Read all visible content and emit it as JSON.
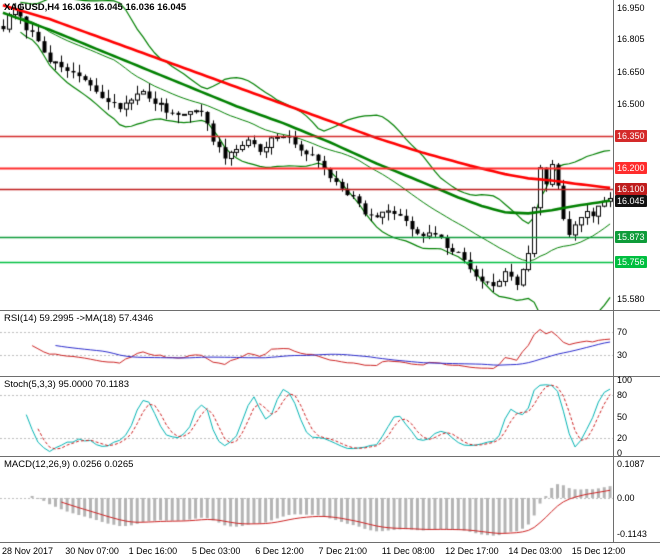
{
  "chart_data": [
    {
      "type": "candlestick",
      "title": "XAGUSD,H4 16.036 16.045 16.036 16.045",
      "symbol": "XAGUSD",
      "timeframe": "H4",
      "bars": 105,
      "ylim": [
        15.53,
        16.99
      ],
      "noise_seed": 7,
      "noise_amp": 0.028,
      "wick_amp": 0.04,
      "close_anchors": [
        [
          0,
          16.86
        ],
        [
          1,
          16.91
        ],
        [
          2,
          16.945
        ],
        [
          3,
          16.9
        ],
        [
          4,
          16.86
        ],
        [
          6,
          16.8
        ],
        [
          8,
          16.71
        ],
        [
          10,
          16.66
        ],
        [
          12,
          16.65
        ],
        [
          14,
          16.61
        ],
        [
          16,
          16.55
        ],
        [
          18,
          16.51
        ],
        [
          20,
          16.48
        ],
        [
          22,
          16.53
        ],
        [
          24,
          16.55
        ],
        [
          26,
          16.51
        ],
        [
          28,
          16.47
        ],
        [
          30,
          16.45
        ],
        [
          32,
          16.475
        ],
        [
          34,
          16.455
        ],
        [
          35,
          16.42
        ],
        [
          36,
          16.32
        ],
        [
          38,
          16.25
        ],
        [
          40,
          16.29
        ],
        [
          42,
          16.33
        ],
        [
          44,
          16.28
        ],
        [
          46,
          16.33
        ],
        [
          48,
          16.35
        ],
        [
          50,
          16.31
        ],
        [
          52,
          16.27
        ],
        [
          54,
          16.23
        ],
        [
          56,
          16.16
        ],
        [
          58,
          16.11
        ],
        [
          60,
          16.06
        ],
        [
          62,
          15.99
        ],
        [
          64,
          15.96
        ],
        [
          66,
          16.0
        ],
        [
          68,
          15.97
        ],
        [
          70,
          15.91
        ],
        [
          72,
          15.87
        ],
        [
          74,
          15.89
        ],
        [
          76,
          15.83
        ],
        [
          78,
          15.79
        ],
        [
          80,
          15.73
        ],
        [
          82,
          15.67
        ],
        [
          84,
          15.635
        ],
        [
          86,
          15.71
        ],
        [
          88,
          15.65
        ],
        [
          90,
          15.8
        ],
        [
          91,
          16.02
        ],
        [
          92,
          16.19
        ],
        [
          93,
          16.13
        ],
        [
          94,
          16.21
        ],
        [
          95,
          16.11
        ],
        [
          96,
          15.96
        ],
        [
          97,
          15.89
        ],
        [
          98,
          15.93
        ],
        [
          99,
          15.97
        ],
        [
          100,
          16.005
        ],
        [
          101,
          15.975
        ],
        [
          102,
          16.02
        ],
        [
          103,
          16.035
        ],
        [
          104,
          16.045
        ]
      ],
      "ma_red_anchors": [
        [
          0,
          16.965
        ],
        [
          8,
          16.9
        ],
        [
          16,
          16.82
        ],
        [
          24,
          16.74
        ],
        [
          32,
          16.66
        ],
        [
          40,
          16.58
        ],
        [
          48,
          16.5
        ],
        [
          56,
          16.42
        ],
        [
          64,
          16.34
        ],
        [
          72,
          16.27
        ],
        [
          80,
          16.21
        ],
        [
          86,
          16.17
        ],
        [
          90,
          16.15
        ],
        [
          94,
          16.14
        ],
        [
          98,
          16.125
        ],
        [
          104,
          16.105
        ]
      ],
      "ma_green_anchors": [
        [
          0,
          16.93
        ],
        [
          8,
          16.85
        ],
        [
          16,
          16.76
        ],
        [
          24,
          16.67
        ],
        [
          32,
          16.58
        ],
        [
          40,
          16.49
        ],
        [
          48,
          16.41
        ],
        [
          56,
          16.32
        ],
        [
          64,
          16.22
        ],
        [
          72,
          16.13
        ],
        [
          78,
          16.06
        ],
        [
          82,
          16.02
        ],
        [
          86,
          15.99
        ],
        [
          90,
          15.985
        ],
        [
          94,
          16.0
        ],
        [
          98,
          16.02
        ],
        [
          104,
          16.045
        ]
      ],
      "ma_red_color": "#ff0000",
      "ma_green_color": "#008000",
      "bollinger": {
        "period": 20,
        "deviation": 2,
        "color": "#008000"
      },
      "y_ticks": [
        {
          "label": "16.950",
          "value": 16.95
        },
        {
          "label": "16.805",
          "value": 16.805
        },
        {
          "label": "16.650",
          "value": 16.65
        },
        {
          "label": "16.500",
          "value": 16.5
        },
        {
          "label": "15.580",
          "value": 15.58
        }
      ],
      "levels": [
        {
          "label": "16.350",
          "value": 16.35,
          "color": "#d42a2a",
          "lw": 1.5
        },
        {
          "label": "16.200",
          "value": 16.2,
          "color": "#ff2d2d",
          "lw": 2
        },
        {
          "label": "16.100",
          "value": 16.1,
          "color": "#bf1d1d",
          "lw": 1.5
        },
        {
          "label": "16.045",
          "value": 16.045,
          "color": "#111111",
          "lw": 0
        },
        {
          "label": "15.873",
          "value": 15.873,
          "color": "#0e9c3a",
          "lw": 1.5
        },
        {
          "label": "15.756",
          "value": 15.756,
          "color": "#00bf40",
          "lw": 1.5
        }
      ],
      "x_labels": [
        "28 Nov 2017",
        "30 Nov 07:00",
        "1 Dec 16:00",
        "5 Dec 03:00",
        "6 Dec 12:00",
        "7 Dec 21:00",
        "11 Dec 08:00",
        "12 Dec 17:00",
        "14 Dec 03:00",
        "15 Dec 12:00"
      ]
    },
    {
      "type": "line",
      "title": "RSI(14) 59.2995 ->MA(18) 57.4346",
      "period": 14,
      "ma_period": 18,
      "current": "59.2995",
      "ma_current": "57.4346",
      "ylim": [
        0,
        100
      ],
      "levels": [
        70,
        30
      ],
      "y_ticks": [
        {
          "label": "70",
          "value": 70
        },
        {
          "label": "30",
          "value": 30
        }
      ],
      "line_color": "#cc2222",
      "ma_color": "#2929cc"
    },
    {
      "type": "line",
      "title": "Stoch(5,3,3) 95.0000 70.1183",
      "k_period": 5,
      "slowing": 3,
      "d_period": 3,
      "current_k": "95.0000",
      "current_d": "70.1183",
      "ylim": [
        0,
        100
      ],
      "levels": [
        80,
        20
      ],
      "y_ticks": [
        {
          "label": "100",
          "value": 100
        },
        {
          "label": "80",
          "value": 80
        },
        {
          "label": "50",
          "value": 50
        },
        {
          "label": "20",
          "value": 20
        },
        {
          "label": "0",
          "value": 0
        }
      ],
      "main_color": "#00b3b3",
      "signal_color": "#cc2222"
    },
    {
      "type": "bar",
      "title": "MACD(12,26,9) 0.0256 0.0265",
      "fast": 12,
      "slow": 26,
      "signal": 9,
      "current_macd": "0.0256",
      "current_signal": "0.0265",
      "ylim": [
        -0.135,
        0.125
      ],
      "y_ticks": [
        {
          "label": "0.1087",
          "value": 0.1087
        },
        {
          "label": "0.00",
          "value": 0
        },
        {
          "label": "-0.1143",
          "value": -0.1143
        }
      ],
      "hist_color": "#b4b4b4",
      "signal_color": "#cc2222"
    }
  ]
}
